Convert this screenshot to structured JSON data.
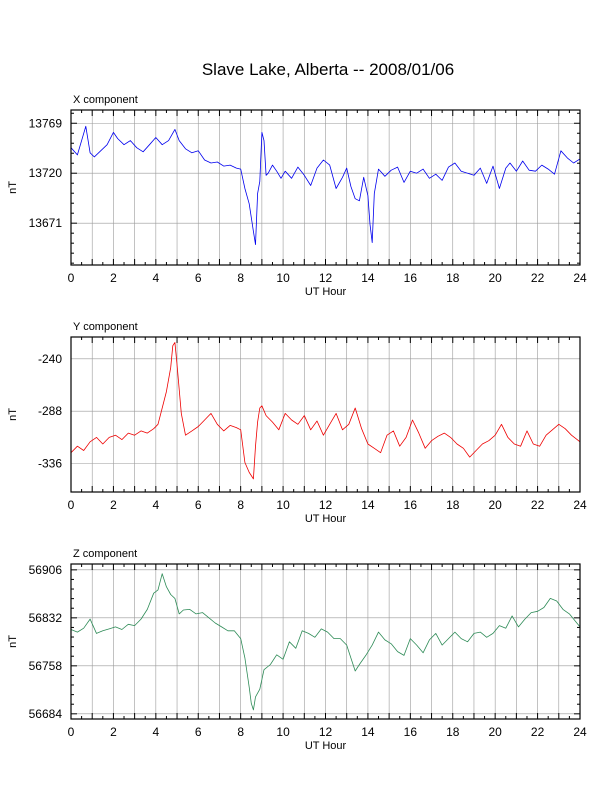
{
  "figure_title": "Slave Lake, Alberta -- 2008/01/06",
  "chart_data": [
    {
      "type": "line",
      "panel_label": "X component",
      "xlabel": "UT Hour",
      "ylabel": "nT",
      "xlim": [
        0,
        24
      ],
      "ylim": [
        13630,
        13782
      ],
      "x_ticks": [
        0,
        2,
        4,
        6,
        8,
        10,
        12,
        14,
        16,
        18,
        20,
        22,
        24
      ],
      "y_ticks": [
        13671,
        13720,
        13769
      ],
      "grid": true,
      "color": "#0000ee",
      "series": [
        {
          "x": [
            0,
            0.3,
            0.5,
            0.7,
            0.9,
            1.1,
            1.4,
            1.7,
            2.0,
            2.2,
            2.5,
            2.8,
            3.1,
            3.4,
            3.7,
            4.0,
            4.3,
            4.6,
            4.9,
            5.1,
            5.4,
            5.7,
            6.0,
            6.3,
            6.6,
            6.9,
            7.2,
            7.5,
            7.8,
            8.0,
            8.2,
            8.4,
            8.6,
            8.7,
            8.8,
            8.9,
            9.0,
            9.1,
            9.2,
            9.3,
            9.5,
            9.7,
            9.9,
            10.1,
            10.4,
            10.7,
            11.0,
            11.3,
            11.6,
            11.9,
            12.2,
            12.5,
            12.8,
            13.0,
            13.2,
            13.4,
            13.6,
            13.8,
            14.0,
            14.1,
            14.2,
            14.3,
            14.5,
            14.8,
            15.1,
            15.4,
            15.7,
            16.0,
            16.3,
            16.6,
            16.9,
            17.2,
            17.5,
            17.8,
            18.1,
            18.4,
            18.7,
            19.0,
            19.3,
            19.6,
            19.9,
            20.2,
            20.5,
            20.7,
            21.0,
            21.3,
            21.6,
            21.9,
            22.2,
            22.5,
            22.8,
            23.1,
            23.4,
            23.7,
            24.0
          ],
          "y": [
            13745,
            13738,
            13752,
            13766,
            13740,
            13736,
            13742,
            13748,
            13760,
            13754,
            13748,
            13752,
            13745,
            13741,
            13748,
            13755,
            13748,
            13752,
            13763,
            13752,
            13744,
            13740,
            13742,
            13733,
            13730,
            13731,
            13727,
            13728,
            13725,
            13724,
            13705,
            13690,
            13663,
            13650,
            13700,
            13712,
            13760,
            13752,
            13718,
            13720,
            13728,
            13722,
            13715,
            13722,
            13715,
            13726,
            13718,
            13708,
            13725,
            13733,
            13728,
            13705,
            13716,
            13725,
            13707,
            13695,
            13693,
            13716,
            13698,
            13670,
            13652,
            13700,
            13724,
            13717,
            13723,
            13726,
            13711,
            13722,
            13720,
            13724,
            13715,
            13719,
            13713,
            13726,
            13730,
            13722,
            13720,
            13718,
            13725,
            13710,
            13727,
            13705,
            13725,
            13730,
            13722,
            13732,
            13723,
            13722,
            13728,
            13724,
            13719,
            13742,
            13735,
            13730,
            13734
          ]
        }
      ]
    },
    {
      "type": "line",
      "panel_label": "Y component",
      "xlabel": "UT Hour",
      "ylabel": "nT",
      "xlim": [
        0,
        24
      ],
      "ylim": [
        -362,
        -220
      ],
      "x_ticks": [
        0,
        2,
        4,
        6,
        8,
        10,
        12,
        14,
        16,
        18,
        20,
        22,
        24
      ],
      "y_ticks": [
        -240,
        -288,
        -336
      ],
      "grid": true,
      "color": "#ee0000",
      "series": [
        {
          "x": [
            0,
            0.3,
            0.6,
            0.9,
            1.2,
            1.5,
            1.8,
            2.1,
            2.4,
            2.7,
            3.0,
            3.3,
            3.6,
            3.9,
            4.1,
            4.3,
            4.5,
            4.7,
            4.8,
            4.9,
            5.0,
            5.2,
            5.4,
            5.7,
            6.0,
            6.3,
            6.6,
            6.9,
            7.2,
            7.5,
            7.8,
            8.0,
            8.2,
            8.4,
            8.6,
            8.7,
            8.8,
            8.9,
            9.0,
            9.2,
            9.5,
            9.8,
            10.1,
            10.4,
            10.7,
            11.0,
            11.3,
            11.6,
            11.9,
            12.2,
            12.5,
            12.8,
            13.1,
            13.4,
            13.7,
            14.0,
            14.3,
            14.6,
            14.9,
            15.2,
            15.5,
            15.8,
            16.1,
            16.4,
            16.7,
            17.0,
            17.3,
            17.6,
            17.9,
            18.2,
            18.5,
            18.8,
            19.1,
            19.4,
            19.7,
            20.0,
            20.3,
            20.6,
            20.9,
            21.2,
            21.5,
            21.8,
            22.1,
            22.4,
            22.7,
            23.0,
            23.3,
            23.6,
            24.0
          ],
          "y": [
            -326,
            -320,
            -324,
            -316,
            -312,
            -318,
            -312,
            -310,
            -314,
            -308,
            -310,
            -306,
            -308,
            -304,
            -300,
            -285,
            -270,
            -248,
            -228,
            -225,
            -245,
            -290,
            -310,
            -306,
            -302,
            -296,
            -290,
            -300,
            -306,
            -301,
            -303,
            -305,
            -335,
            -344,
            -350,
            -320,
            -298,
            -285,
            -283,
            -292,
            -298,
            -305,
            -290,
            -296,
            -300,
            -292,
            -305,
            -297,
            -310,
            -300,
            -290,
            -305,
            -300,
            -285,
            -304,
            -318,
            -322,
            -326,
            -310,
            -306,
            -320,
            -312,
            -296,
            -308,
            -322,
            -315,
            -311,
            -308,
            -312,
            -318,
            -322,
            -330,
            -324,
            -318,
            -315,
            -310,
            -300,
            -312,
            -318,
            -320,
            -306,
            -318,
            -320,
            -310,
            -305,
            -300,
            -304,
            -310,
            -316
          ]
        }
      ]
    },
    {
      "type": "line",
      "panel_label": "Z component",
      "xlabel": "UT Hour",
      "ylabel": "nT",
      "xlim": [
        0,
        24
      ],
      "ylim": [
        56676,
        56915
      ],
      "x_ticks": [
        0,
        2,
        4,
        6,
        8,
        10,
        12,
        14,
        16,
        18,
        20,
        22,
        24
      ],
      "y_ticks": [
        56684,
        56758,
        56832,
        56906
      ],
      "grid": true,
      "color": "#2e8b57",
      "series": [
        {
          "x": [
            0,
            0.3,
            0.6,
            0.9,
            1.2,
            1.5,
            1.8,
            2.1,
            2.4,
            2.7,
            3.0,
            3.3,
            3.6,
            3.9,
            4.1,
            4.3,
            4.5,
            4.7,
            4.9,
            5.1,
            5.3,
            5.6,
            5.9,
            6.2,
            6.5,
            6.8,
            7.1,
            7.4,
            7.7,
            8.0,
            8.2,
            8.4,
            8.5,
            8.6,
            8.7,
            8.9,
            9.1,
            9.4,
            9.7,
            10.0,
            10.3,
            10.6,
            10.9,
            11.2,
            11.5,
            11.8,
            12.1,
            12.4,
            12.7,
            13.0,
            13.2,
            13.4,
            13.6,
            13.9,
            14.2,
            14.5,
            14.8,
            15.1,
            15.4,
            15.7,
            16.0,
            16.3,
            16.6,
            16.9,
            17.2,
            17.5,
            17.8,
            18.1,
            18.4,
            18.7,
            19.0,
            19.3,
            19.6,
            19.9,
            20.2,
            20.5,
            20.8,
            21.1,
            21.4,
            21.7,
            22.0,
            22.3,
            22.6,
            22.9,
            23.2,
            23.5,
            23.8,
            24.0
          ],
          "y": [
            56814,
            56810,
            56816,
            56830,
            56808,
            56812,
            56815,
            56818,
            56814,
            56822,
            56820,
            56830,
            56845,
            56870,
            56875,
            56900,
            56880,
            56868,
            56862,
            56838,
            56844,
            56845,
            56838,
            56840,
            56832,
            56824,
            56818,
            56812,
            56812,
            56800,
            56770,
            56725,
            56700,
            56690,
            56710,
            56722,
            56752,
            56760,
            56775,
            56768,
            56795,
            56785,
            56812,
            56808,
            56802,
            56815,
            56810,
            56800,
            56800,
            56790,
            56770,
            56750,
            56760,
            56774,
            56790,
            56810,
            56798,
            56792,
            56780,
            56774,
            56800,
            56790,
            56778,
            56798,
            56808,
            56790,
            56800,
            56810,
            56800,
            56795,
            56808,
            56810,
            56802,
            56808,
            56820,
            56816,
            56835,
            56818,
            56830,
            56840,
            56842,
            56848,
            56862,
            56858,
            56845,
            56838,
            56826,
            56818
          ]
        }
      ]
    }
  ]
}
